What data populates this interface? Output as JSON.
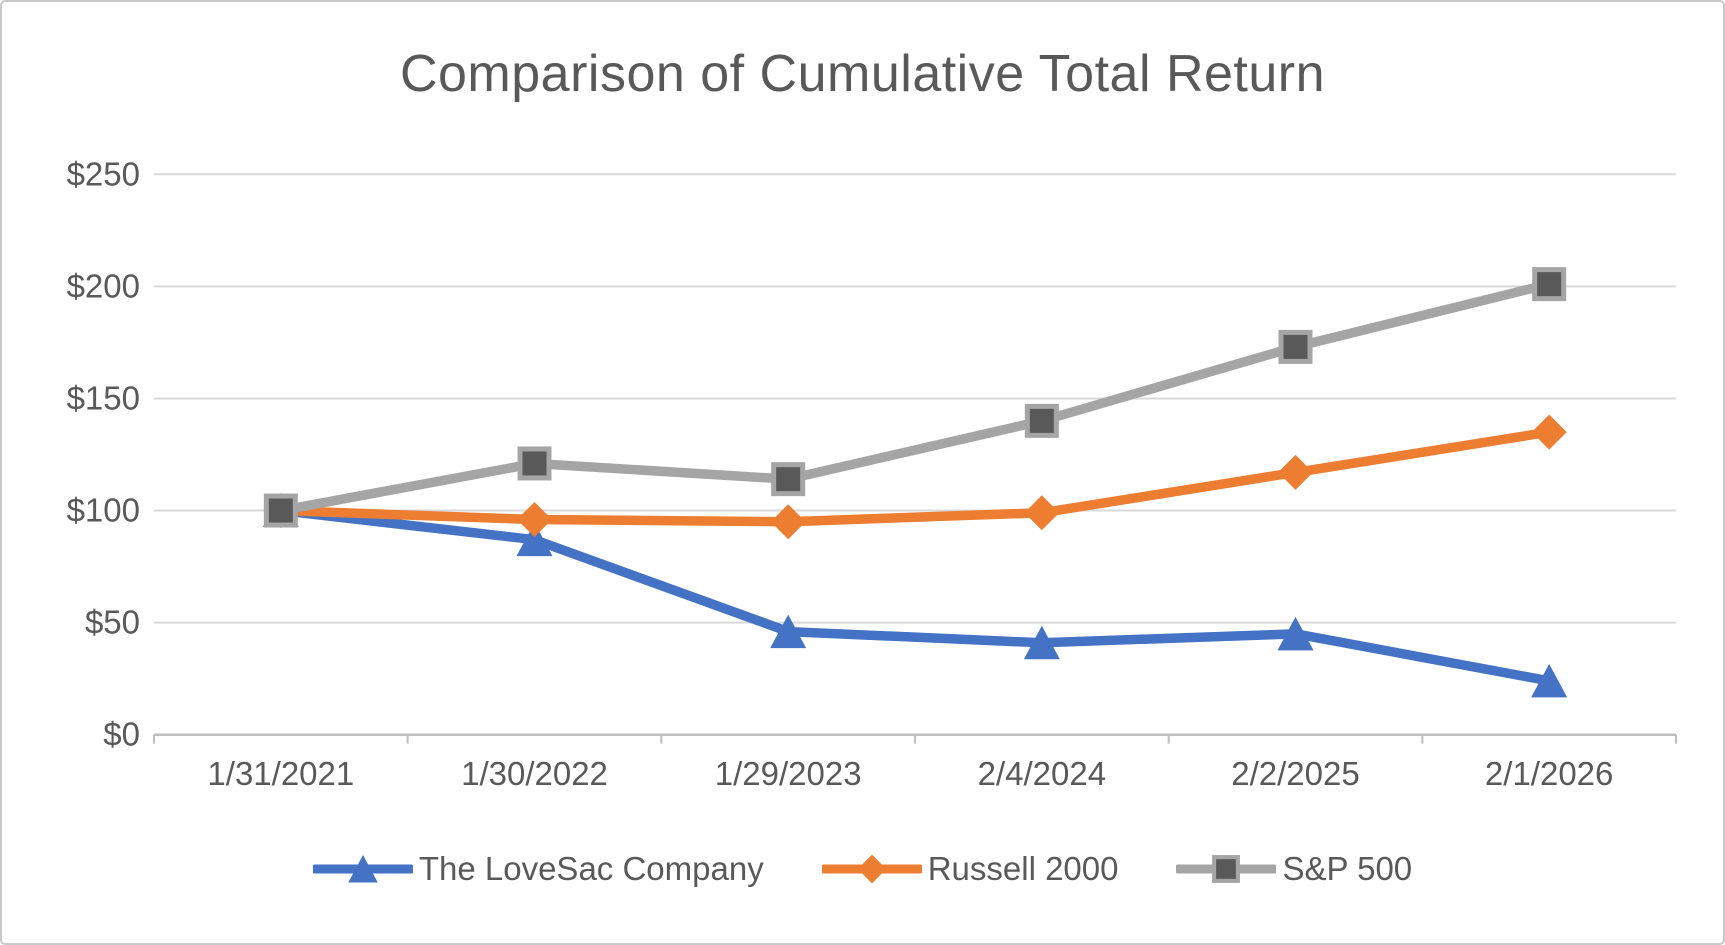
{
  "chart_data": {
    "type": "line",
    "title": "Comparison of Cumulative Total Return",
    "categories": [
      "1/31/2021",
      "1/30/2022",
      "1/29/2023",
      "2/4/2024",
      "2/2/2025",
      "2/1/2026"
    ],
    "series": [
      {
        "name": "The LoveSac Company",
        "color": "#4472C4",
        "marker": "triangle",
        "values": [
          100,
          87,
          46,
          41,
          45,
          24
        ]
      },
      {
        "name": "Russell 2000",
        "color": "#ED7D31",
        "marker": "diamond",
        "values": [
          100,
          96,
          95,
          99,
          117,
          135
        ]
      },
      {
        "name": "S&P 500",
        "color": "#A5A5A5",
        "marker": "square",
        "marker_fill": "#595959",
        "values": [
          100,
          121,
          114,
          140,
          173,
          201
        ]
      }
    ],
    "y_ticks": [
      "$0",
      "$50",
      "$100",
      "$150",
      "$200",
      "$250"
    ],
    "y_tick_values": [
      0,
      50,
      100,
      150,
      200,
      250
    ],
    "ylim": [
      0,
      250
    ],
    "xlabel": "",
    "ylabel": "",
    "grid": true,
    "legend_position": "bottom",
    "colors": {
      "title_text": "#595959",
      "axis_text": "#595959",
      "gridline": "#d9d9d9",
      "axis_line": "#bfbfbf",
      "background": "#ffffff",
      "frame_border": "#c9c9c9"
    }
  }
}
